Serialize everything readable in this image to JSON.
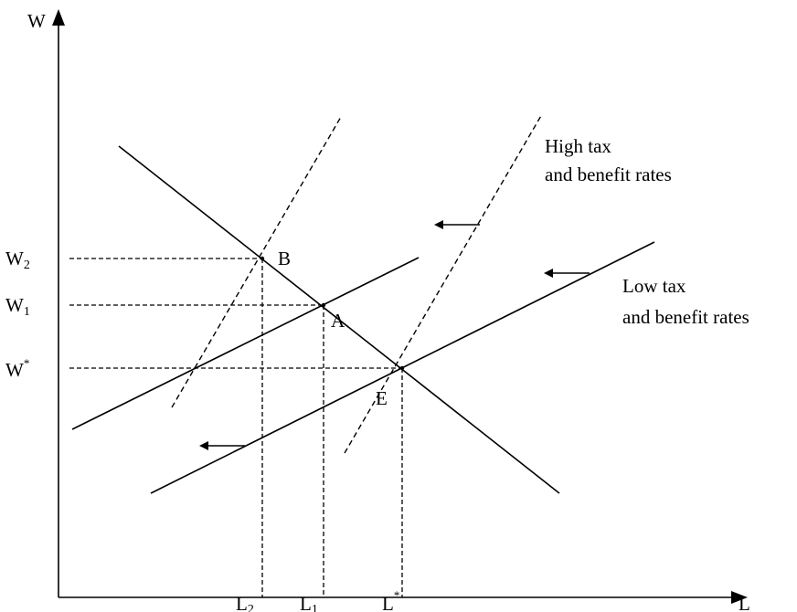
{
  "axes": {
    "y_label": "W",
    "x_label": "L"
  },
  "wage_levels": [
    {
      "base": "W",
      "sub": "2"
    },
    {
      "base": "W",
      "sub": "1"
    },
    {
      "base": "W",
      "sup": "*"
    }
  ],
  "employment_levels": [
    {
      "base": "L",
      "sub": "2"
    },
    {
      "base": "L",
      "sub": "1"
    },
    {
      "base": "L",
      "sup": "*"
    }
  ],
  "points": {
    "b": "B",
    "a": "A",
    "e": "E"
  },
  "annotations": {
    "high_line1": "High tax",
    "high_line2": "and benefit rates",
    "low_line1": "Low tax",
    "low_line2": "and benefit rates"
  }
}
